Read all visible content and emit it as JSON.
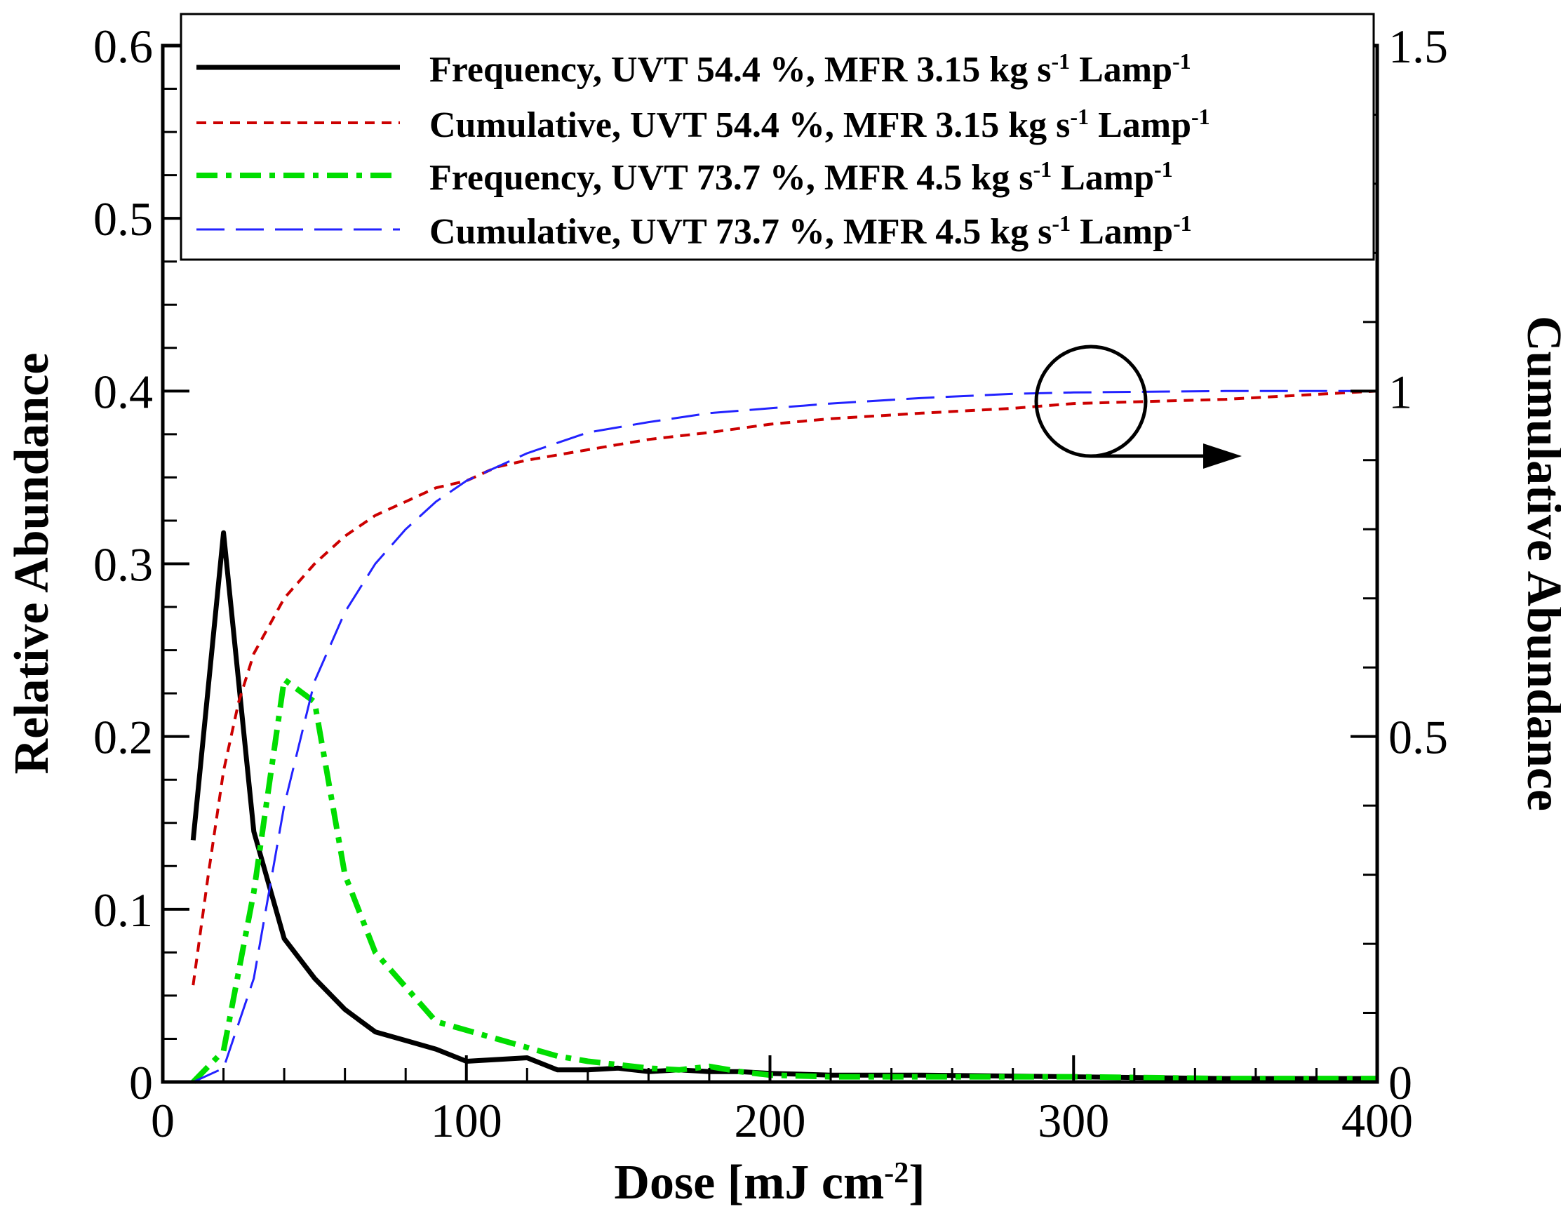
{
  "chart_data": {
    "type": "line",
    "title": "",
    "xlabel": "Dose [mJ cm",
    "xlabel_sup": "-2",
    "xlabel_end": "]",
    "ylabel_left": "Relative Abundance",
    "ylabel_right": "Cumulative Abundance",
    "xlim": [
      0,
      400
    ],
    "ylim_left": [
      0,
      0.6
    ],
    "ylim_right": [
      0,
      1.5
    ],
    "x_ticks": [
      {
        "value": 0,
        "label": "0"
      },
      {
        "value": 100,
        "label": "100"
      },
      {
        "value": 200,
        "label": "200"
      },
      {
        "value": 300,
        "label": "300"
      },
      {
        "value": 400,
        "label": "400"
      }
    ],
    "y_ticks_left": [
      {
        "value": 0,
        "label": "0"
      },
      {
        "value": 0.1,
        "label": "0.1"
      },
      {
        "value": 0.2,
        "label": "0.2"
      },
      {
        "value": 0.3,
        "label": "0.3"
      },
      {
        "value": 0.4,
        "label": "0.4"
      },
      {
        "value": 0.5,
        "label": "0.5"
      },
      {
        "value": 0.6,
        "label": "0.6"
      }
    ],
    "y_ticks_right": [
      {
        "value": 0,
        "label": "0"
      },
      {
        "value": 0.5,
        "label": "0.5"
      },
      {
        "value": 1,
        "label": "1"
      },
      {
        "value": 1.5,
        "label": "1.5"
      }
    ],
    "legend_position": "top",
    "series": [
      {
        "name": "freq-544",
        "label_pre": "Frequency, UVT 54.4 %, MFR 3.15 kg s",
        "label_mid": " Lamp",
        "axis": "left",
        "color": "#000000",
        "dash": "solid",
        "x": [
          10,
          20,
          30,
          40,
          50,
          60,
          70,
          80,
          90,
          100,
          110,
          120,
          130,
          140,
          150,
          160,
          170,
          180,
          190,
          200,
          220,
          250,
          300,
          350,
          400
        ],
        "y": [
          0.14,
          0.318,
          0.145,
          0.083,
          0.06,
          0.042,
          0.029,
          0.024,
          0.019,
          0.012,
          0.013,
          0.014,
          0.007,
          0.007,
          0.008,
          0.006,
          0.007,
          0.006,
          0.006,
          0.005,
          0.004,
          0.004,
          0.003,
          0.002,
          0.002
        ]
      },
      {
        "name": "cum-544",
        "label_pre": "Cumulative, UVT 54.4 %, MFR 3.15 kg s",
        "label_mid": " Lamp",
        "axis": "right",
        "color": "#cc0000",
        "dash": "dotted",
        "x": [
          10,
          15,
          20,
          25,
          30,
          40,
          50,
          60,
          70,
          80,
          90,
          100,
          110,
          120,
          140,
          160,
          180,
          200,
          220,
          250,
          280,
          300,
          350,
          400
        ],
        "y": [
          0.14,
          0.3,
          0.45,
          0.55,
          0.62,
          0.7,
          0.75,
          0.79,
          0.82,
          0.84,
          0.86,
          0.87,
          0.89,
          0.9,
          0.915,
          0.93,
          0.94,
          0.952,
          0.96,
          0.968,
          0.975,
          0.982,
          0.988,
          1.0
        ]
      },
      {
        "name": "freq-737",
        "label_pre": "Frequency, UVT 73.7 %, MFR 4.5 kg s",
        "label_mid": " Lamp",
        "axis": "left",
        "color": "#00dd00",
        "dash": "dashdot",
        "x": [
          10,
          20,
          30,
          40,
          50,
          60,
          70,
          80,
          90,
          100,
          110,
          120,
          130,
          140,
          150,
          160,
          170,
          180,
          190,
          200,
          220,
          250,
          300,
          350,
          400
        ],
        "y": [
          0.0,
          0.018,
          0.11,
          0.233,
          0.22,
          0.12,
          0.075,
          0.055,
          0.035,
          0.03,
          0.025,
          0.02,
          0.015,
          0.012,
          0.01,
          0.008,
          0.007,
          0.009,
          0.006,
          0.004,
          0.003,
          0.003,
          0.003,
          0.002,
          0.002
        ]
      },
      {
        "name": "cum-737",
        "label_pre": "Cumulative, UVT 73.7 %, MFR 4.5 kg s",
        "label_mid": " Lamp",
        "axis": "right",
        "color": "#2222ff",
        "dash": "longdash",
        "x": [
          10,
          20,
          30,
          40,
          50,
          60,
          70,
          80,
          90,
          100,
          110,
          120,
          140,
          160,
          180,
          200,
          220,
          250,
          280,
          300,
          350,
          400
        ],
        "y": [
          0.0,
          0.02,
          0.15,
          0.4,
          0.58,
          0.68,
          0.75,
          0.8,
          0.84,
          0.87,
          0.89,
          0.91,
          0.94,
          0.955,
          0.968,
          0.975,
          0.982,
          0.99,
          0.996,
          0.998,
          1.0,
          1.0
        ]
      }
    ],
    "superscript_inv": "-1",
    "annotation": "circle with arrow pointing right to Cumulative Abundance axis"
  }
}
